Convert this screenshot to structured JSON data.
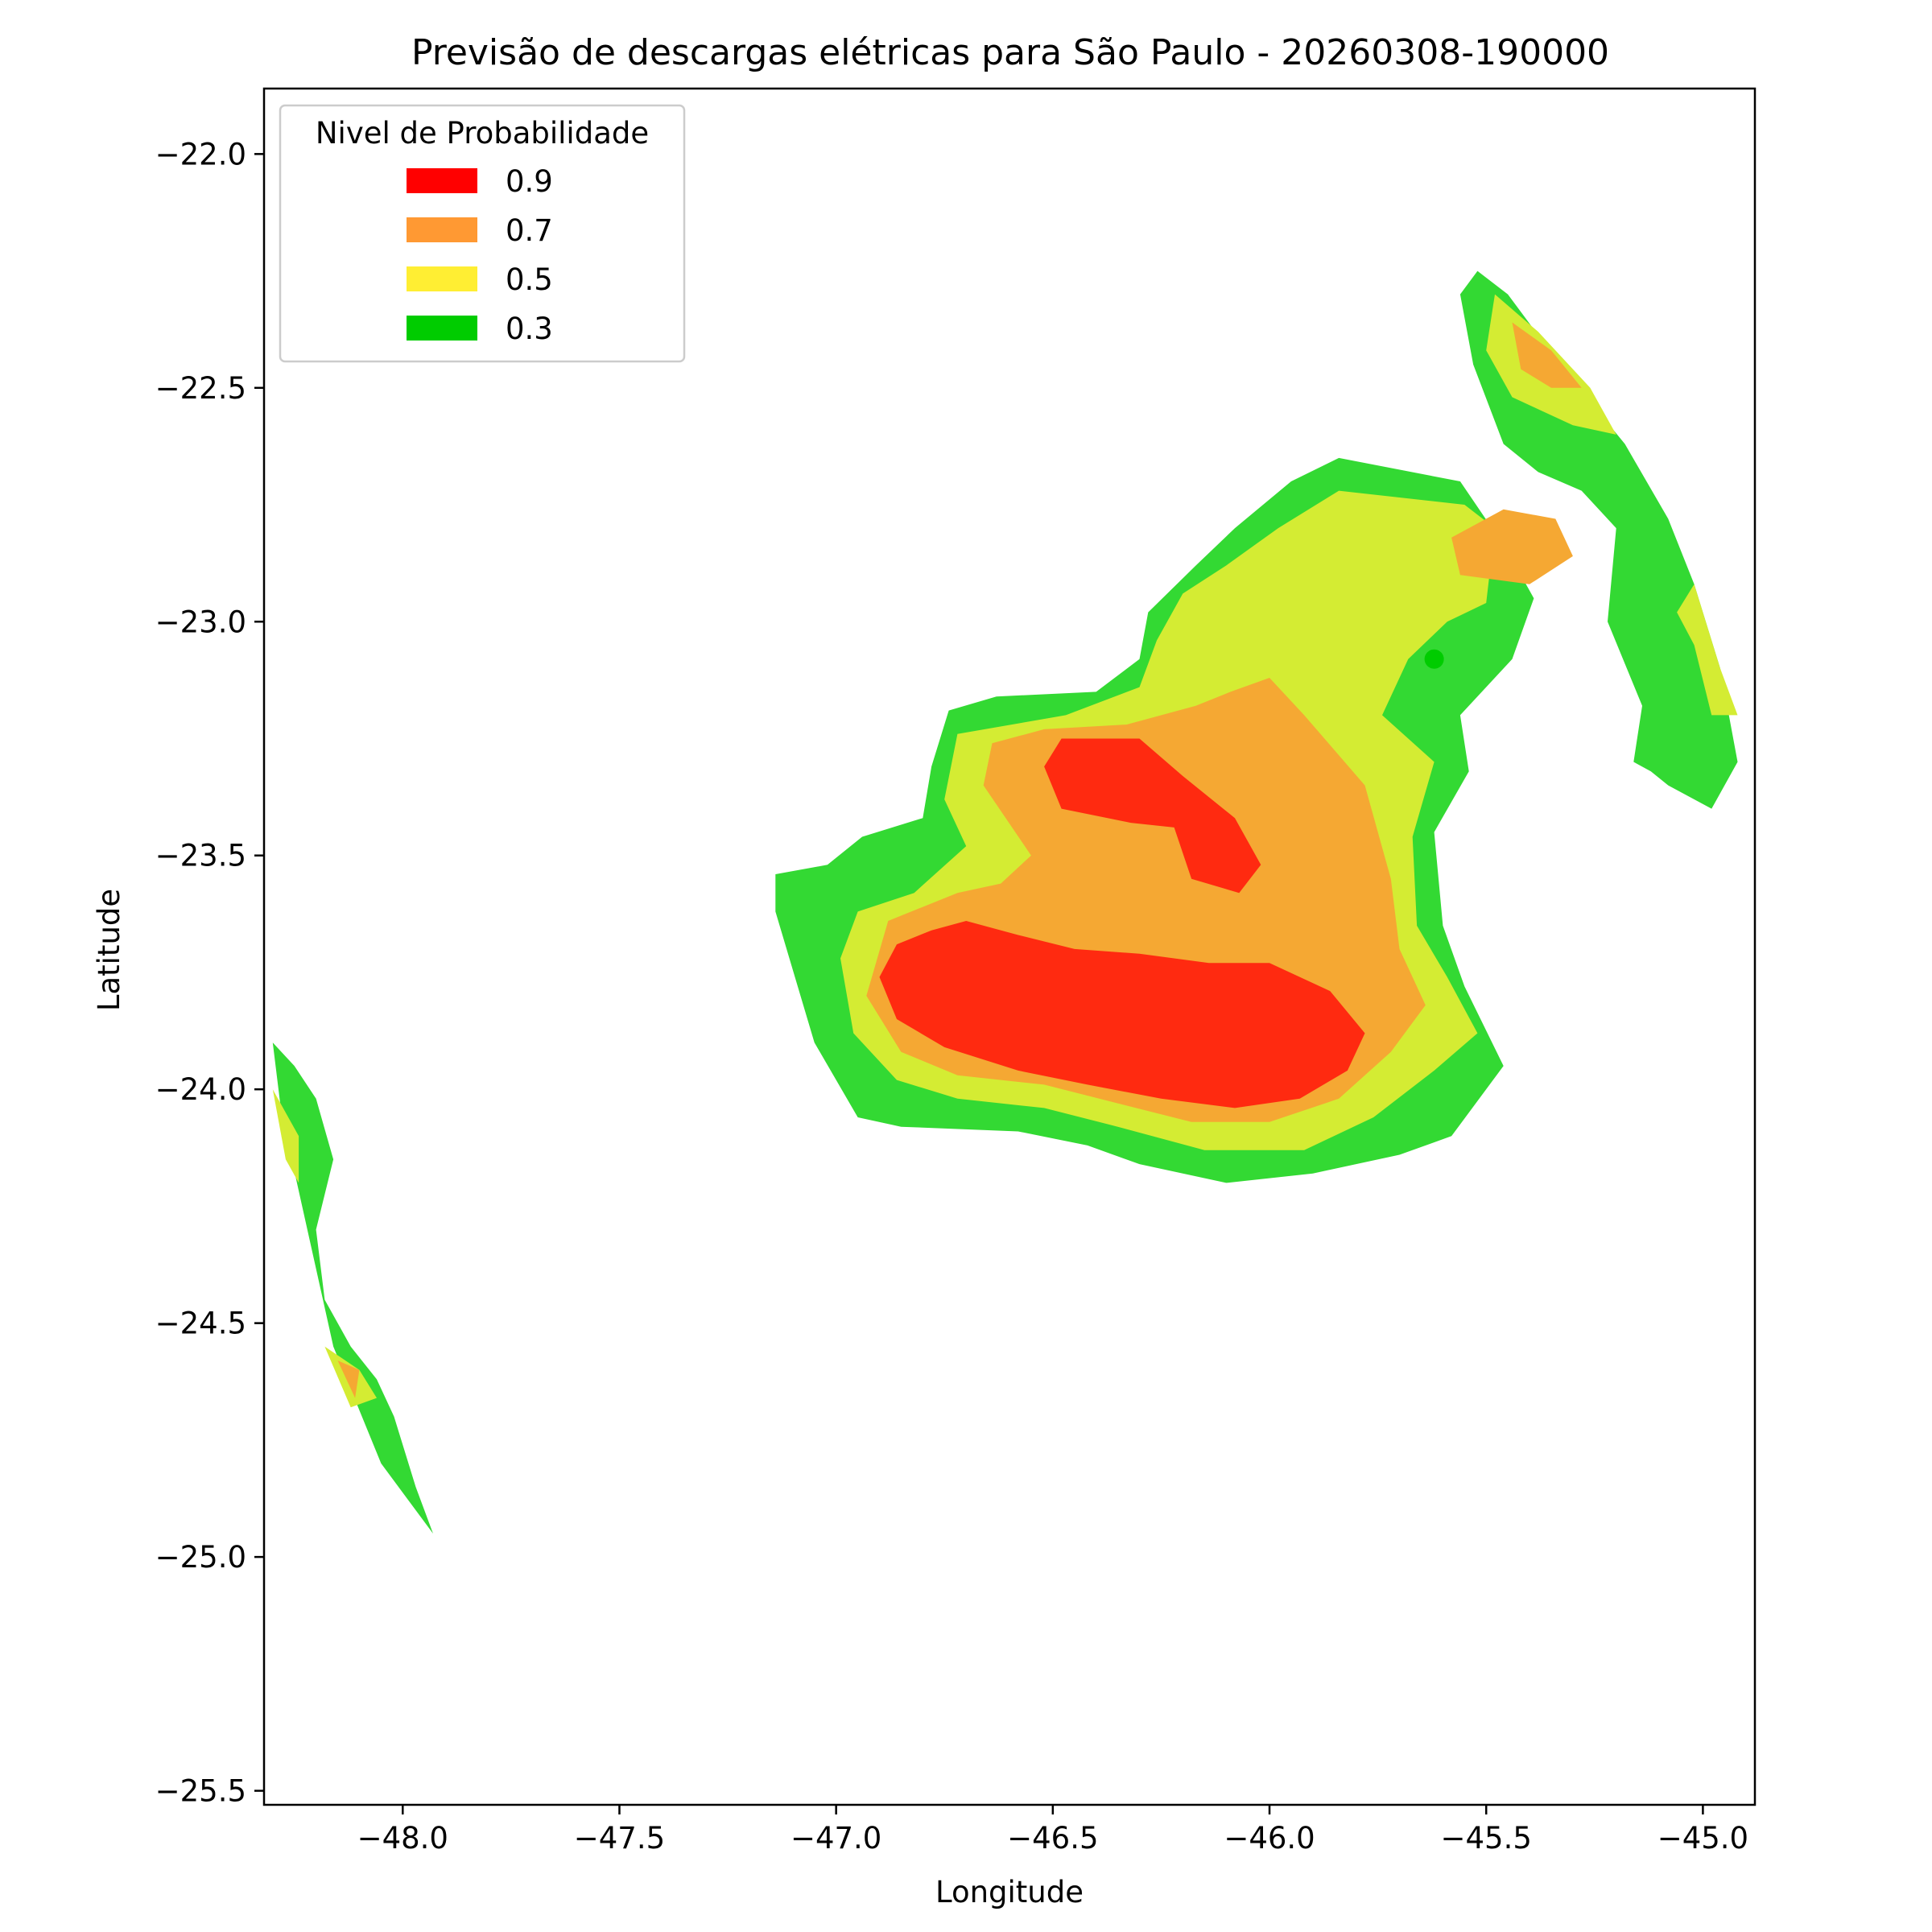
{
  "chart_data": {
    "type": "contourf",
    "title": "Previsão de descargas elétricas para São Paulo - 20260308-190000",
    "xlabel": "Longitude",
    "ylabel": "Latitude",
    "xlim": [
      -48.32,
      -44.88
    ],
    "ylim": [
      -25.53,
      -21.86
    ],
    "x_ticks": [
      -48.0,
      -47.5,
      -47.0,
      -46.5,
      -46.0,
      -45.5,
      -45.0
    ],
    "x_tick_labels": [
      "−48.0",
      "−47.5",
      "−47.0",
      "−46.5",
      "−46.0",
      "−45.5",
      "−45.0"
    ],
    "y_ticks": [
      -22.0,
      -22.5,
      -23.0,
      -23.5,
      -24.0,
      -24.5,
      -25.0,
      -25.5
    ],
    "y_tick_labels": [
      "−22.0",
      "−22.5",
      "−23.0",
      "−23.5",
      "−24.0",
      "−24.5",
      "−25.0",
      "−25.5"
    ],
    "grid": false,
    "legend": {
      "title": "Nivel de Probabilidade",
      "placement": "upper-left",
      "entries": [
        {
          "label": "0.9",
          "color": "#ff0000"
        },
        {
          "label": "0.7",
          "color": "#ff9933"
        },
        {
          "label": "0.5",
          "color": "#ffee33"
        },
        {
          "label": "0.3",
          "color": "#00cc00"
        }
      ]
    },
    "fill_colors": {
      "0.3": "#33d933",
      "0.5": "#d4ec33",
      "0.7": "#f5a833",
      "0.9": "#ff2a10"
    },
    "regions": [
      {
        "level": "0.3",
        "name": "main-cell",
        "points": [
          [
            -46.94,
            -23.46
          ],
          [
            -47.02,
            -23.52
          ],
          [
            -47.14,
            -23.54
          ],
          [
            -47.14,
            -23.62
          ],
          [
            -47.05,
            -23.9
          ],
          [
            -46.95,
            -24.06
          ],
          [
            -46.85,
            -24.08
          ],
          [
            -46.58,
            -24.09
          ],
          [
            -46.42,
            -24.12
          ],
          [
            -46.3,
            -24.16
          ],
          [
            -46.1,
            -24.2
          ],
          [
            -45.9,
            -24.18
          ],
          [
            -45.7,
            -24.14
          ],
          [
            -45.58,
            -24.1
          ],
          [
            -45.46,
            -23.95
          ],
          [
            -45.55,
            -23.78
          ],
          [
            -45.6,
            -23.65
          ],
          [
            -45.62,
            -23.45
          ],
          [
            -45.54,
            -23.32
          ],
          [
            -45.56,
            -23.2
          ],
          [
            -45.44,
            -23.08
          ],
          [
            -45.39,
            -22.95
          ],
          [
            -45.45,
            -22.85
          ],
          [
            -45.56,
            -22.7
          ],
          [
            -45.84,
            -22.65
          ],
          [
            -45.95,
            -22.7
          ],
          [
            -46.08,
            -22.8
          ],
          [
            -46.17,
            -22.88
          ],
          [
            -46.28,
            -22.98
          ],
          [
            -46.3,
            -23.08
          ],
          [
            -46.4,
            -23.15
          ],
          [
            -46.63,
            -23.16
          ],
          [
            -46.74,
            -23.19
          ],
          [
            -46.78,
            -23.31
          ],
          [
            -46.8,
            -23.42
          ]
        ]
      },
      {
        "level": "0.5",
        "name": "main-cell",
        "points": [
          [
            -46.82,
            -23.58
          ],
          [
            -46.95,
            -23.62
          ],
          [
            -46.99,
            -23.72
          ],
          [
            -46.96,
            -23.88
          ],
          [
            -46.86,
            -23.98
          ],
          [
            -46.72,
            -24.02
          ],
          [
            -46.52,
            -24.04
          ],
          [
            -46.35,
            -24.08
          ],
          [
            -46.15,
            -24.13
          ],
          [
            -45.92,
            -24.13
          ],
          [
            -45.76,
            -24.06
          ],
          [
            -45.62,
            -23.96
          ],
          [
            -45.52,
            -23.88
          ],
          [
            -45.59,
            -23.76
          ],
          [
            -45.66,
            -23.65
          ],
          [
            -45.67,
            -23.46
          ],
          [
            -45.62,
            -23.3
          ],
          [
            -45.74,
            -23.2
          ],
          [
            -45.68,
            -23.08
          ],
          [
            -45.59,
            -23.0
          ],
          [
            -45.5,
            -22.96
          ],
          [
            -45.48,
            -22.8
          ],
          [
            -45.55,
            -22.75
          ],
          [
            -45.84,
            -22.72
          ],
          [
            -45.98,
            -22.8
          ],
          [
            -46.1,
            -22.88
          ],
          [
            -46.2,
            -22.94
          ],
          [
            -46.26,
            -23.04
          ],
          [
            -46.3,
            -23.14
          ],
          [
            -46.47,
            -23.2
          ],
          [
            -46.72,
            -23.24
          ],
          [
            -46.75,
            -23.38
          ],
          [
            -46.7,
            -23.48
          ]
        ]
      },
      {
        "level": "0.7",
        "name": "main-cell",
        "points": [
          [
            -46.72,
            -23.58
          ],
          [
            -46.88,
            -23.64
          ],
          [
            -46.93,
            -23.8
          ],
          [
            -46.85,
            -23.92
          ],
          [
            -46.72,
            -23.97
          ],
          [
            -46.52,
            -23.99
          ],
          [
            -46.35,
            -24.03
          ],
          [
            -46.18,
            -24.07
          ],
          [
            -46.0,
            -24.07
          ],
          [
            -45.84,
            -24.02
          ],
          [
            -45.72,
            -23.92
          ],
          [
            -45.64,
            -23.82
          ],
          [
            -45.7,
            -23.7
          ],
          [
            -45.72,
            -23.55
          ],
          [
            -45.78,
            -23.35
          ],
          [
            -45.92,
            -23.2
          ],
          [
            -46.0,
            -23.12
          ],
          [
            -46.09,
            -23.15
          ],
          [
            -46.17,
            -23.18
          ],
          [
            -46.33,
            -23.22
          ],
          [
            -46.52,
            -23.23
          ],
          [
            -46.64,
            -23.26
          ],
          [
            -46.66,
            -23.35
          ],
          [
            -46.55,
            -23.5
          ],
          [
            -46.62,
            -23.56
          ]
        ]
      },
      {
        "level": "0.9",
        "name": "main-cell",
        "points": [
          [
            -46.78,
            -23.66
          ],
          [
            -46.7,
            -23.64
          ],
          [
            -46.58,
            -23.67
          ],
          [
            -46.45,
            -23.7
          ],
          [
            -46.3,
            -23.71
          ],
          [
            -46.14,
            -23.73
          ],
          [
            -46.0,
            -23.73
          ],
          [
            -45.86,
            -23.79
          ],
          [
            -45.78,
            -23.88
          ],
          [
            -45.82,
            -23.96
          ],
          [
            -45.93,
            -24.02
          ],
          [
            -46.08,
            -24.04
          ],
          [
            -46.25,
            -24.02
          ],
          [
            -46.42,
            -23.99
          ],
          [
            -46.58,
            -23.96
          ],
          [
            -46.75,
            -23.91
          ],
          [
            -46.86,
            -23.85
          ],
          [
            -46.9,
            -23.76
          ],
          [
            -46.86,
            -23.69
          ]
        ]
      },
      {
        "level": "0.9",
        "name": "upper-core",
        "points": [
          [
            -46.48,
            -23.25
          ],
          [
            -46.3,
            -23.25
          ],
          [
            -46.2,
            -23.33
          ],
          [
            -46.08,
            -23.42
          ],
          [
            -46.02,
            -23.52
          ],
          [
            -46.07,
            -23.58
          ],
          [
            -46.18,
            -23.55
          ],
          [
            -46.22,
            -23.44
          ],
          [
            -46.32,
            -23.43
          ],
          [
            -46.48,
            -23.4
          ],
          [
            -46.52,
            -23.31
          ]
        ]
      },
      {
        "level": "0.7",
        "name": "northeast-core",
        "points": [
          [
            -45.58,
            -22.82
          ],
          [
            -45.46,
            -22.76
          ],
          [
            -45.34,
            -22.78
          ],
          [
            -45.3,
            -22.86
          ],
          [
            -45.4,
            -22.92
          ],
          [
            -45.56,
            -22.9
          ]
        ]
      },
      {
        "level": "0.3",
        "name": "ne-arc-west-band",
        "points": [
          [
            -45.52,
            -22.25
          ],
          [
            -45.45,
            -22.3
          ],
          [
            -45.33,
            -22.45
          ],
          [
            -45.18,
            -22.62
          ],
          [
            -45.08,
            -22.78
          ],
          [
            -45.02,
            -22.92
          ],
          [
            -44.96,
            -23.1
          ],
          [
            -44.92,
            -23.3
          ],
          [
            -44.98,
            -23.4
          ],
          [
            -45.08,
            -23.35
          ],
          [
            -45.12,
            -23.32
          ],
          [
            -45.16,
            -23.3
          ],
          [
            -45.14,
            -23.18
          ],
          [
            -45.22,
            -23.0
          ],
          [
            -45.2,
            -22.8
          ],
          [
            -45.28,
            -22.72
          ],
          [
            -45.38,
            -22.68
          ],
          [
            -45.46,
            -22.62
          ],
          [
            -45.53,
            -22.45
          ],
          [
            -45.56,
            -22.3
          ]
        ]
      },
      {
        "level": "0.5",
        "name": "ne-arc-west-band",
        "points": [
          [
            -45.48,
            -22.3
          ],
          [
            -45.38,
            -22.38
          ],
          [
            -45.26,
            -22.5
          ],
          [
            -45.2,
            -22.6
          ],
          [
            -45.3,
            -22.58
          ],
          [
            -45.44,
            -22.52
          ],
          [
            -45.5,
            -22.42
          ]
        ]
      },
      {
        "level": "0.7",
        "name": "ne-arc-west-band",
        "points": [
          [
            -45.44,
            -22.36
          ],
          [
            -45.35,
            -22.42
          ],
          [
            -45.28,
            -22.5
          ],
          [
            -45.35,
            -22.5
          ],
          [
            -45.42,
            -22.46
          ]
        ]
      },
      {
        "level": "0.5",
        "name": "ne-arc-east-band",
        "points": [
          [
            -45.02,
            -22.92
          ],
          [
            -44.96,
            -23.1
          ],
          [
            -44.92,
            -23.2
          ],
          [
            -44.98,
            -23.2
          ],
          [
            -45.02,
            -23.05
          ],
          [
            -45.06,
            -22.98
          ]
        ]
      },
      {
        "level": "0.3",
        "name": "sw-arc",
        "points": [
          [
            -48.3,
            -23.9
          ],
          [
            -48.28,
            -24.05
          ],
          [
            -48.22,
            -24.3
          ],
          [
            -48.16,
            -24.55
          ],
          [
            -48.05,
            -24.8
          ],
          [
            -47.93,
            -24.95
          ],
          [
            -47.97,
            -24.85
          ],
          [
            -48.02,
            -24.7
          ],
          [
            -48.06,
            -24.62
          ],
          [
            -48.12,
            -24.55
          ],
          [
            -48.18,
            -24.45
          ],
          [
            -48.2,
            -24.3
          ],
          [
            -48.16,
            -24.15
          ],
          [
            -48.2,
            -24.02
          ],
          [
            -48.25,
            -23.95
          ]
        ]
      },
      {
        "level": "0.5",
        "name": "sw-arc",
        "points": [
          [
            -48.3,
            -24.0
          ],
          [
            -48.27,
            -24.15
          ],
          [
            -48.24,
            -24.2
          ],
          [
            -48.24,
            -24.1
          ]
        ]
      },
      {
        "level": "0.5",
        "name": "sw-arc-lower",
        "points": [
          [
            -48.18,
            -24.55
          ],
          [
            -48.12,
            -24.68
          ],
          [
            -48.06,
            -24.66
          ],
          [
            -48.1,
            -24.6
          ]
        ]
      },
      {
        "level": "0.7",
        "name": "sw-arc-lower",
        "points": [
          [
            -48.15,
            -24.58
          ],
          [
            -48.11,
            -24.66
          ],
          [
            -48.1,
            -24.6
          ]
        ]
      }
    ],
    "markers": [
      {
        "x": -45.62,
        "y": -23.08,
        "color": "#00cc00"
      }
    ]
  }
}
